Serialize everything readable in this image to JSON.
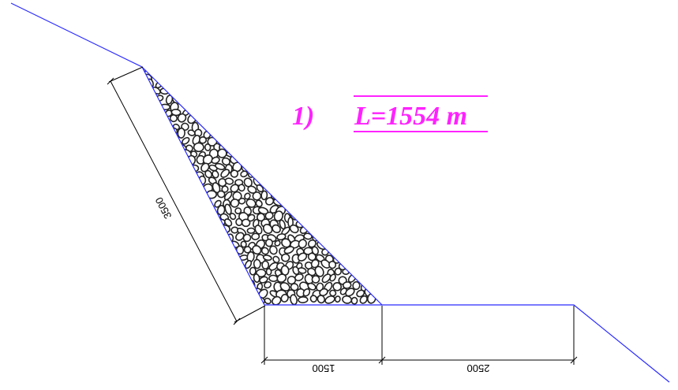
{
  "section": {
    "number_label": "1)",
    "length_label": "L=1554 m"
  },
  "dimensions": {
    "slope_length": "3500",
    "base_left": "1500",
    "base_right": "2500"
  },
  "colors": {
    "ground_line": "#2b2bff",
    "annotation": "#ff22ff",
    "dimension": "#000000",
    "stone_outline": "#222222"
  }
}
